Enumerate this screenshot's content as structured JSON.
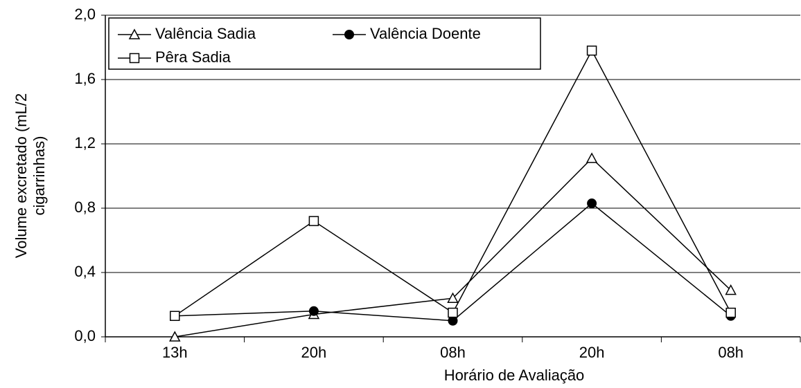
{
  "chart_data": {
    "type": "line",
    "xlabel": "Horário de Avaliação",
    "ylabel": [
      "Volume excretado (mL/2",
      "cigarrinhas)"
    ],
    "categories": [
      "13h",
      "20h",
      "08h",
      "20h",
      "08h"
    ],
    "series": [
      {
        "name": "Valência Sadia",
        "color": "#000000",
        "marker": "triangle",
        "values": [
          0.0,
          0.14,
          0.24,
          1.11,
          0.29
        ]
      },
      {
        "name": "Valência Doente",
        "color": "#000000",
        "marker": "circle",
        "values": [
          0.13,
          0.16,
          0.1,
          0.83,
          0.13
        ]
      },
      {
        "name": "Pêra Sadia",
        "color": "#000000",
        "marker": "square",
        "values": [
          0.13,
          0.72,
          0.15,
          1.78,
          0.15
        ]
      }
    ],
    "ylim": [
      0,
      2
    ],
    "yticks": [
      {
        "value": 0,
        "label": "0,0"
      },
      {
        "value": 0.4,
        "label": "0,4"
      },
      {
        "value": 0.8,
        "label": "0,8"
      },
      {
        "value": 1.2,
        "label": "1,2"
      },
      {
        "value": 1.6,
        "label": "1,6"
      },
      {
        "value": 2,
        "label": "2,0"
      }
    ],
    "grid": true,
    "legend": "upper left"
  }
}
